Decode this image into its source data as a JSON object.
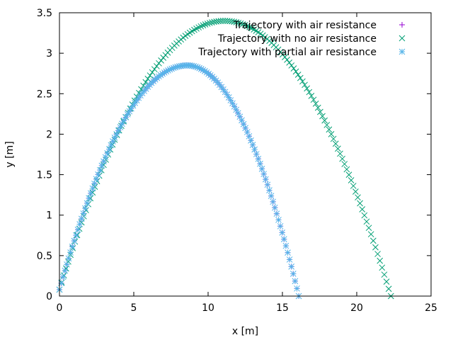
{
  "chart_data": {
    "type": "scatter",
    "title": "",
    "xlabel": "x [m]",
    "ylabel": "y [m]",
    "xlim": [
      0,
      25
    ],
    "ylim": [
      0,
      3.5
    ],
    "xticks": [
      "0",
      "5",
      "10",
      "15",
      "20",
      "25"
    ],
    "yticks": [
      "0",
      "0.5",
      "1",
      "1.5",
      "2",
      "2.5",
      "3",
      "3.5"
    ],
    "grid": false,
    "legend_position": "top-right",
    "series": [
      {
        "name": "Trajectory with air resistance",
        "marker": "plus",
        "color": "#9400d3",
        "x_start": 0,
        "x_end": 16.1,
        "y_start": 0.08,
        "y_end": 0,
        "x_apex": 8.6,
        "y_apex": 2.85,
        "points": 130
      },
      {
        "name": "Trajectory with no air resistance",
        "marker": "cross",
        "color": "#009e73",
        "x_start": 0,
        "x_end": 22.3,
        "y_start": 0.08,
        "y_end": 0,
        "x_apex": 11.1,
        "y_apex": 3.4,
        "points": 150
      },
      {
        "name": "Trajectory with partial air resistance",
        "marker": "star",
        "color": "#56b4e9",
        "x_start": 0,
        "x_end": 16.1,
        "y_start": 0.08,
        "y_end": 0,
        "x_apex": 8.6,
        "y_apex": 2.85,
        "points": 130
      }
    ]
  }
}
